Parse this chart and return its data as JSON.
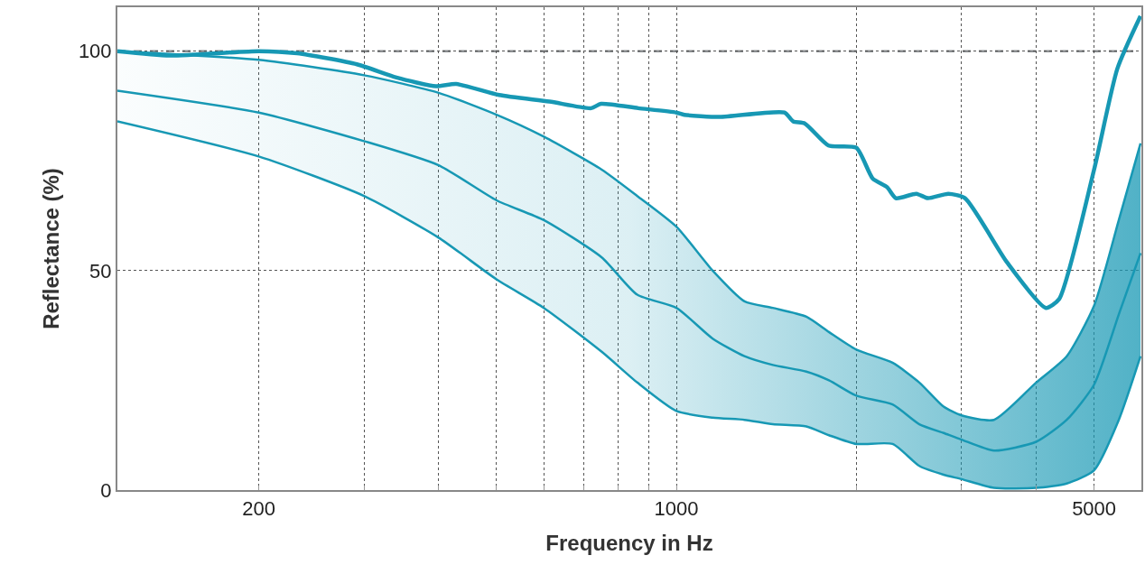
{
  "chart_data": {
    "type": "line",
    "xlabel": "Frequency in Hz",
    "ylabel": "Reflectance (%)",
    "log": "x",
    "grid": true,
    "marker": "none",
    "line_style": "solid",
    "xlim": [
      116,
      6000
    ],
    "ylim": [
      0,
      110
    ],
    "xticks": [
      200,
      {
        "value": 300,
        "label": null
      },
      {
        "value": 400,
        "label": null
      },
      {
        "value": 500,
        "label": null
      },
      {
        "value": 600,
        "label": null
      },
      {
        "value": 700,
        "label": null
      },
      {
        "value": 800,
        "label": null
      },
      {
        "value": 900,
        "label": null
      },
      1000,
      {
        "value": 2000,
        "label": null
      },
      {
        "value": 3000,
        "label": null
      },
      {
        "value": 4000,
        "label": null
      },
      5000
    ],
    "yticks": [
      0,
      50,
      100
    ],
    "ref_lines": [
      {
        "axis": "y",
        "value": 100,
        "color": "#8a8d90",
        "line_style": "dashed"
      }
    ],
    "series": [
      {
        "color": "#1798b4",
        "x": [
          116,
          142,
          200,
          232,
          292,
          340,
          396,
          428,
          505,
          613,
          720,
          748,
          863,
          1000,
          1031,
          1181,
          1516,
          1568,
          1641,
          1797,
          2000,
          2130,
          2252,
          2330,
          2520,
          2636,
          2851,
          3041,
          3570,
          4152,
          4370,
          5000,
          5469,
          5980
        ],
        "values": [
          100,
          99,
          100,
          99.5,
          97,
          94,
          92,
          92.5,
          90,
          88.5,
          87,
          88,
          87,
          86,
          85.5,
          85,
          86,
          84,
          83.5,
          78.5,
          78,
          71,
          69,
          66.5,
          67.5,
          66.5,
          67.5,
          66.5,
          52,
          41.5,
          43.5,
          73,
          96,
          108
        ]
      },
      {
        "color": "#1798b4",
        "x": [
          116,
          200,
          300,
          400,
          500,
          600,
          750,
          860,
          1000,
          1150,
          1300,
          1450,
          1650,
          1800,
          2000,
          2300,
          2550,
          2800,
          3000,
          3400,
          4000,
          4500,
          5000,
          5500,
          5980
        ],
        "values": [
          91,
          86,
          79.5,
          74,
          66,
          61.5,
          53,
          44.5,
          41.5,
          34.5,
          30.5,
          28.5,
          27,
          25,
          21.5,
          19.5,
          15,
          13,
          11.5,
          9,
          11,
          16,
          24,
          40,
          54
        ],
        "upper": [
          100,
          98,
          94.5,
          90.5,
          85.5,
          80.5,
          73,
          67,
          60,
          50,
          43,
          41.5,
          39.5,
          36,
          32,
          29,
          24.5,
          19,
          17,
          16,
          24.5,
          30.5,
          42,
          61.5,
          79
        ],
        "lower": [
          84,
          76,
          67,
          57.5,
          48,
          41.5,
          31.5,
          24.5,
          18,
          16.5,
          16,
          15,
          14.5,
          12.5,
          10.5,
          10.5,
          5.5,
          3.5,
          2.5,
          0.5,
          0.5,
          1.5,
          4.5,
          16,
          30.5
        ]
      },
      {
        "color": "#1798b4",
        "x": [
          116,
          200,
          300,
          400,
          500,
          600,
          750,
          860,
          1000,
          1150,
          1300,
          1450,
          1650,
          1800,
          2000,
          2300,
          2550,
          2800,
          3000,
          3400,
          4000,
          4500,
          5000,
          5500,
          5980
        ],
        "values": [
          100,
          98,
          94.5,
          90.5,
          85.5,
          80.5,
          73,
          67,
          60,
          50,
          43,
          41.5,
          39.5,
          36,
          32,
          29,
          24.5,
          19,
          17,
          16,
          24.5,
          30.5,
          42,
          61.5,
          79
        ]
      },
      {
        "color": "#1798b4",
        "x": [
          116,
          200,
          300,
          400,
          500,
          600,
          750,
          860,
          1000,
          1150,
          1300,
          1450,
          1650,
          1800,
          2000,
          2300,
          2550,
          2800,
          3000,
          3400,
          4000,
          4500,
          5000,
          5500,
          5980
        ],
        "values": [
          84,
          76,
          67,
          57.5,
          48,
          41.5,
          31.5,
          24.5,
          18,
          16.5,
          16,
          15,
          14.5,
          12.5,
          10.5,
          10.5,
          5.5,
          3.5,
          2.5,
          0.5,
          0.5,
          1.5,
          4.5,
          16,
          30.5
        ]
      }
    ]
  }
}
